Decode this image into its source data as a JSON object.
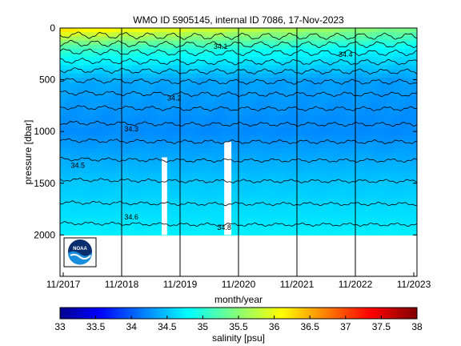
{
  "chart_data": {
    "type": "heatmap",
    "title": "WMO ID 5905145, internal ID 7086, 17-Nov-2023",
    "xlabel": "month/year",
    "ylabel": "pressure [dbar]",
    "colorbar_label": "salinity [psu]",
    "x_ticks": [
      "11/2017",
      "11/2018",
      "11/2019",
      "11/2020",
      "11/2021",
      "11/2022",
      "11/2023"
    ],
    "y_ticks": [
      0,
      500,
      1000,
      1500,
      2000
    ],
    "ylim": [
      2400,
      0
    ],
    "xlim": [
      "2017-11",
      "2023-11"
    ],
    "colorbar_ticks": [
      33,
      33.5,
      34,
      34.5,
      35,
      35.5,
      36,
      36.5,
      37,
      37.5,
      38
    ],
    "clim": [
      33,
      38
    ],
    "colormap": "jet",
    "contour_labels": [
      "34.4",
      "34.3",
      "34.2",
      "34.1",
      "34.5",
      "34.6",
      "34.8"
    ],
    "logo_text": "NOAA",
    "salinity_profile_by_pressure": [
      {
        "pressure": 0,
        "salinity": 35.6
      },
      {
        "pressure": 200,
        "salinity": 34.9
      },
      {
        "pressure": 500,
        "salinity": 34.4
      },
      {
        "pressure": 1000,
        "salinity": 34.3
      },
      {
        "pressure": 1500,
        "salinity": 34.6
      },
      {
        "pressure": 2000,
        "salinity": 34.8
      }
    ]
  }
}
